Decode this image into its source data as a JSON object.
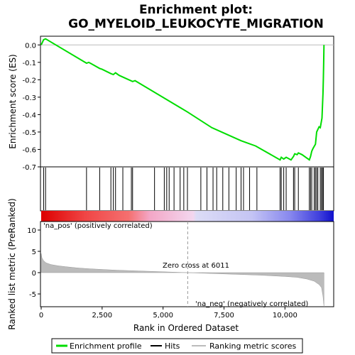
{
  "chart_data": {
    "type": "line",
    "title_line1": "Enrichment plot:",
    "title_line2": "GO_MYELOID_LEUKOCYTE_MIGRATION",
    "top_panel": {
      "ylabel": "Enrichment score (ES)",
      "ylim": [
        -0.7,
        0.05
      ],
      "yticks": [
        0.0,
        -0.1,
        -0.2,
        -0.3,
        -0.4,
        -0.5,
        -0.6,
        -0.7
      ],
      "ytick_labels": [
        "0.0",
        "-0.1",
        "-0.2",
        "-0.3",
        "-0.4",
        "-0.5",
        "-0.6",
        "-0.7"
      ],
      "series": [
        {
          "name": "Enrichment profile",
          "color": "#00dd00",
          "x": [
            0,
            100,
            180,
            1860,
            1950,
            2400,
            2500,
            2860,
            2960,
            3050,
            3200,
            3750,
            3850,
            6000,
            7000,
            7400,
            8200,
            8400,
            8800,
            9800,
            9850,
            9950,
            10050,
            10250,
            10350,
            10400,
            10500,
            10550,
            10700,
            11000,
            11050,
            11100,
            11150,
            11250,
            11300,
            11400,
            11450,
            11520,
            11540,
            11560,
            11575,
            11590,
            11600
          ],
          "y": [
            0.0,
            0.03,
            0.035,
            -0.105,
            -0.1,
            -0.135,
            -0.14,
            -0.165,
            -0.17,
            -0.16,
            -0.175,
            -0.21,
            -0.205,
            -0.385,
            -0.475,
            -0.5,
            -0.55,
            -0.56,
            -0.58,
            -0.66,
            -0.645,
            -0.655,
            -0.645,
            -0.66,
            -0.64,
            -0.625,
            -0.63,
            -0.62,
            -0.63,
            -0.66,
            -0.64,
            -0.61,
            -0.595,
            -0.57,
            -0.5,
            -0.47,
            -0.475,
            -0.42,
            -0.35,
            -0.28,
            -0.2,
            -0.1,
            0.0
          ]
        }
      ]
    },
    "hits": [
      100,
      180,
      1860,
      2400,
      2860,
      2960,
      3050,
      3350,
      3700,
      3750,
      4650,
      5050,
      5150,
      5250,
      5450,
      5700,
      5850,
      6000,
      6550,
      6800,
      7050,
      7200,
      7450,
      7700,
      8000,
      8200,
      8300,
      8550,
      8850,
      9800,
      9850,
      9950,
      10050,
      10350,
      10400,
      10550,
      11000,
      11050,
      11100,
      11200,
      11250,
      11300,
      11350,
      11450,
      11500,
      11540,
      11580
    ],
    "bottom_panel": {
      "ylabel": "Ranked list metric (PreRanked)",
      "xlabel": "Rank in Ordered Dataset",
      "ylim": [
        -8,
        12
      ],
      "yticks": [
        10,
        5,
        0,
        -5
      ],
      "ytick_labels": [
        "10",
        "5",
        "0",
        "-5"
      ],
      "xticks": [
        0,
        2500,
        5000,
        7500,
        10000
      ],
      "xtick_labels": [
        "0",
        "2,500",
        "5,000",
        "7,500",
        "10,000"
      ],
      "xlim": [
        0,
        12000
      ],
      "zero_cross": 6011,
      "zero_cross_label": "Zero cross at 6011",
      "pos_label": "'na_pos' (positively correlated)",
      "neg_label": "'na_neg' (negatively correlated)",
      "metric_curve": {
        "x": [
          0,
          30,
          100,
          200,
          400,
          700,
          1000,
          1500,
          2000,
          3000,
          4000,
          5000,
          6011,
          7000,
          8000,
          9000,
          10000,
          10500,
          10900,
          11200,
          11400,
          11500,
          11560,
          11600
        ],
        "y": [
          4.5,
          3.5,
          2.8,
          2.3,
          1.9,
          1.6,
          1.4,
          1.1,
          0.9,
          0.6,
          0.4,
          0.2,
          0.0,
          -0.2,
          -0.4,
          -0.6,
          -0.9,
          -1.1,
          -1.5,
          -2.0,
          -2.8,
          -3.5,
          -5.5,
          -8.0
        ]
      }
    },
    "legend": {
      "items": [
        {
          "label": "Enrichment profile",
          "color": "#00dd00"
        },
        {
          "label": "Hits",
          "color": "#000000"
        },
        {
          "label": "Ranking metric scores",
          "color": "#bbbbbb"
        }
      ]
    },
    "colors": {
      "profile": "#00dd00",
      "hit": "#000000",
      "metric_fill": "#bbbbbb",
      "zero_line": "#999999",
      "pos_text": "#cc0000",
      "neg_text": "#0000cc"
    }
  }
}
